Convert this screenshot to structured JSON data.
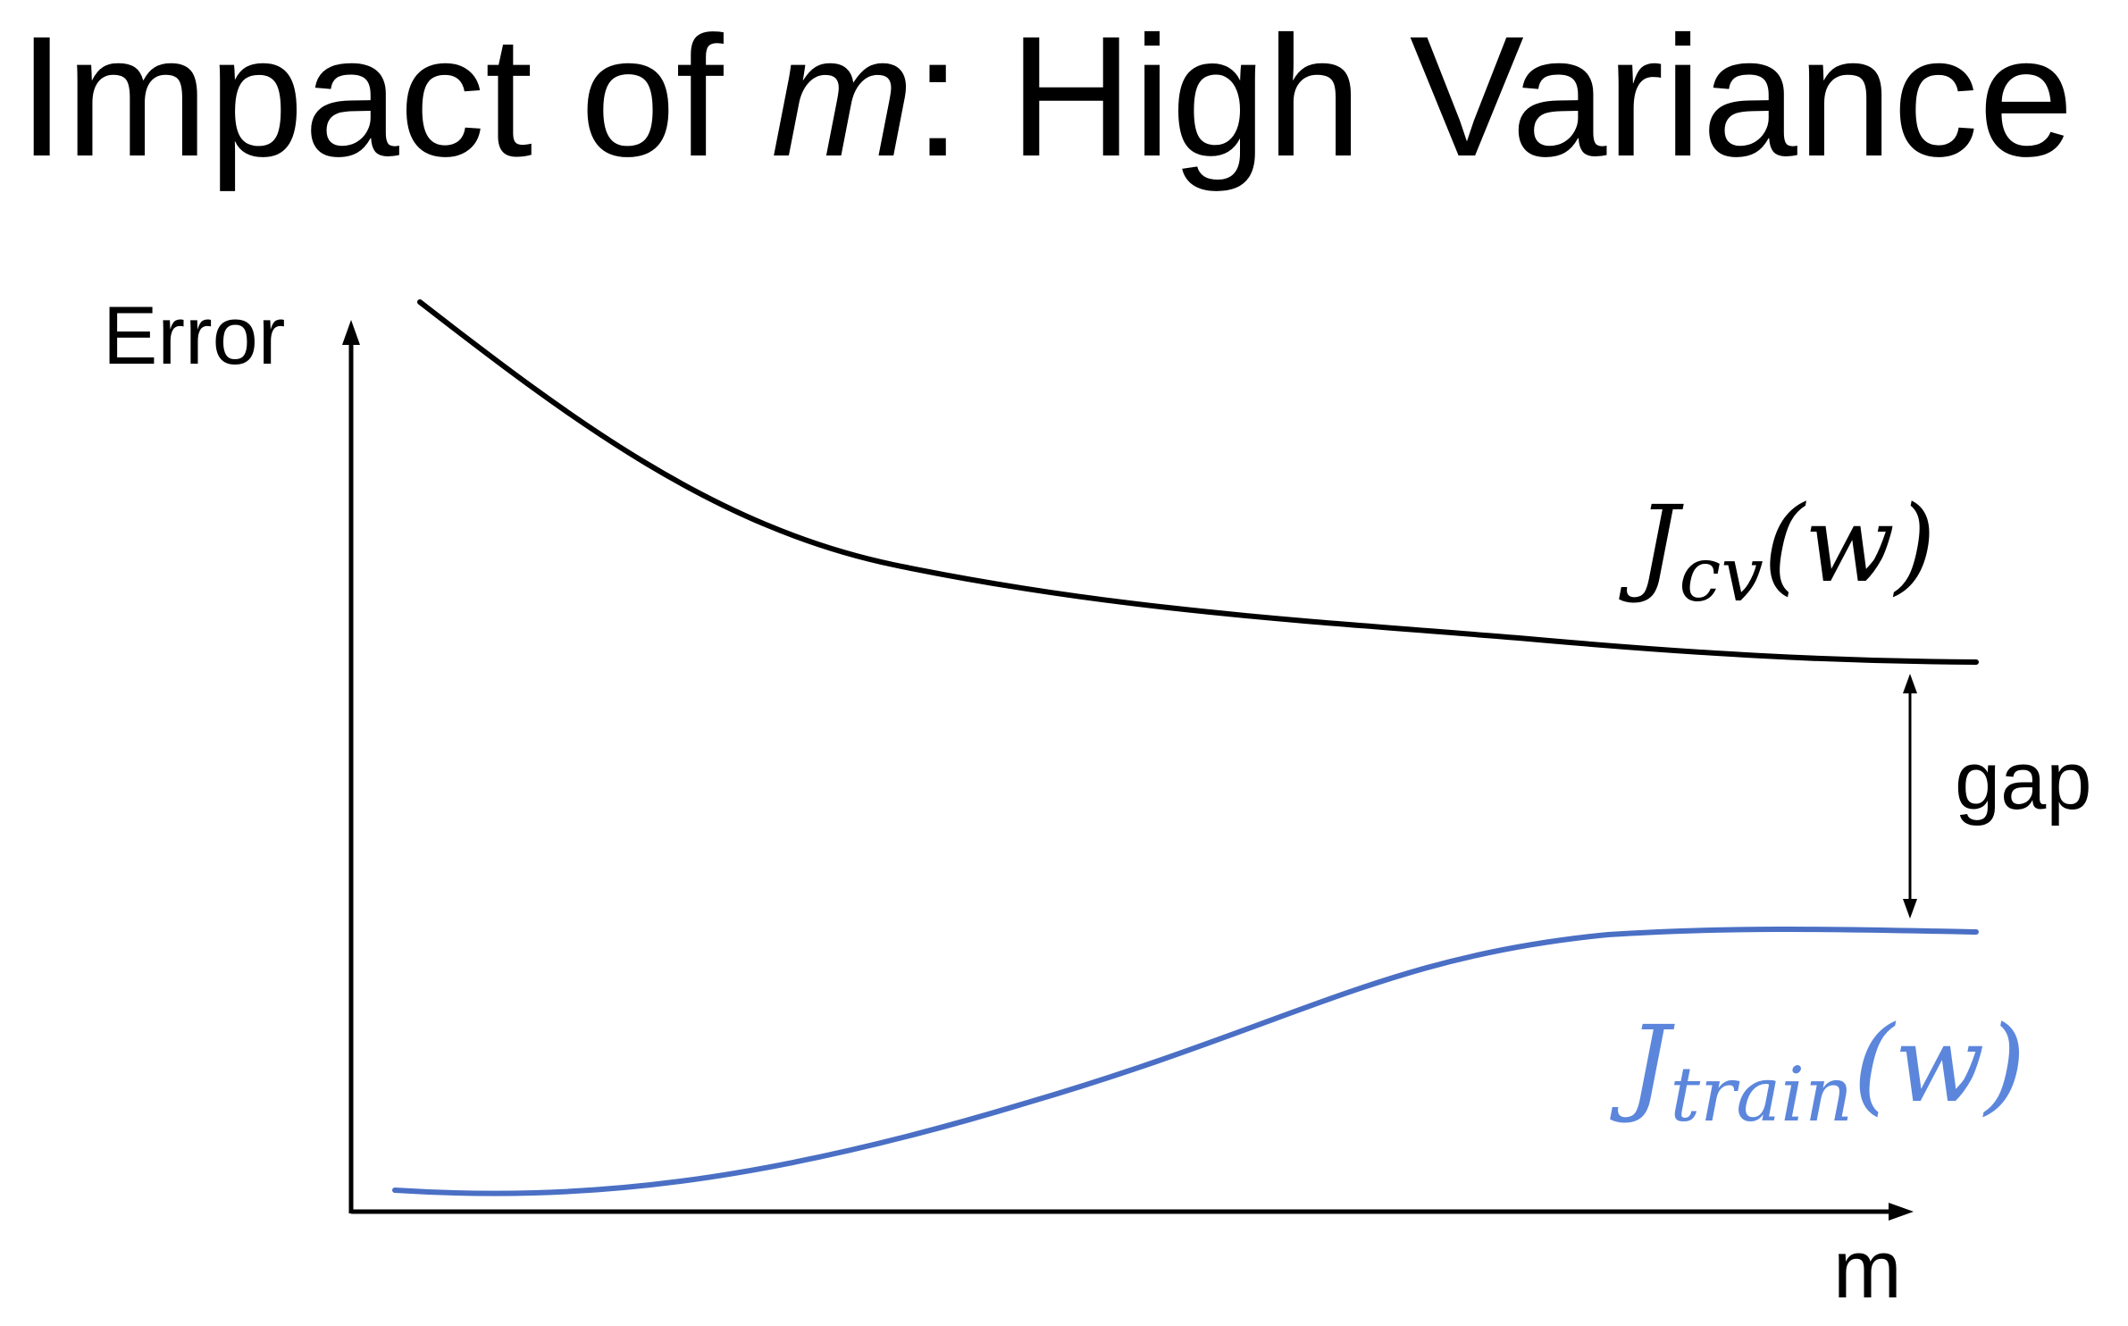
{
  "title": {
    "prefix": "Impact of ",
    "variable": "m",
    "suffix": ": High Variance"
  },
  "axes": {
    "y_label": "Error",
    "x_label": "m"
  },
  "curves": {
    "cv": {
      "symbol": "J",
      "subscript": "cv",
      "argument": "(w)",
      "color": "#000000"
    },
    "train": {
      "symbol": "J",
      "subscript": "train",
      "argument": "(w)",
      "color": "#4a6fc4",
      "label_color": "#5b86dc"
    }
  },
  "gap": {
    "label": "gap"
  }
}
